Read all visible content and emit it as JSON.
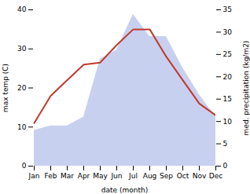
{
  "chart_data": {
    "type": "line",
    "xlabel": "date (month)",
    "ylabel": "max temp (C)",
    "y2label": "med. precipitation (kg/m2)",
    "categories": [
      "Jan",
      "Feb",
      "Mar",
      "Apr",
      "May",
      "Jun",
      "Jul",
      "Aug",
      "Sep",
      "Oct",
      "Nov",
      "Dec"
    ],
    "series": [
      {
        "type": "area",
        "axis": "y2",
        "color": "#c8d0f0",
        "values": [
          8,
          9,
          9,
          11,
          24,
          26,
          34,
          29,
          29,
          22,
          16,
          11
        ]
      },
      {
        "type": "line",
        "color": "#c0392b",
        "values": [
          11,
          18,
          22,
          26,
          26.5,
          31,
          35,
          35,
          28,
          22,
          16,
          13
        ]
      }
    ],
    "ylim": [
      0,
      40
    ],
    "yticks": [
      0,
      10,
      20,
      30,
      40
    ],
    "y2lim": [
      0,
      35
    ],
    "y2ticks": [
      0,
      5,
      10,
      15,
      20,
      25,
      30,
      35
    ]
  }
}
